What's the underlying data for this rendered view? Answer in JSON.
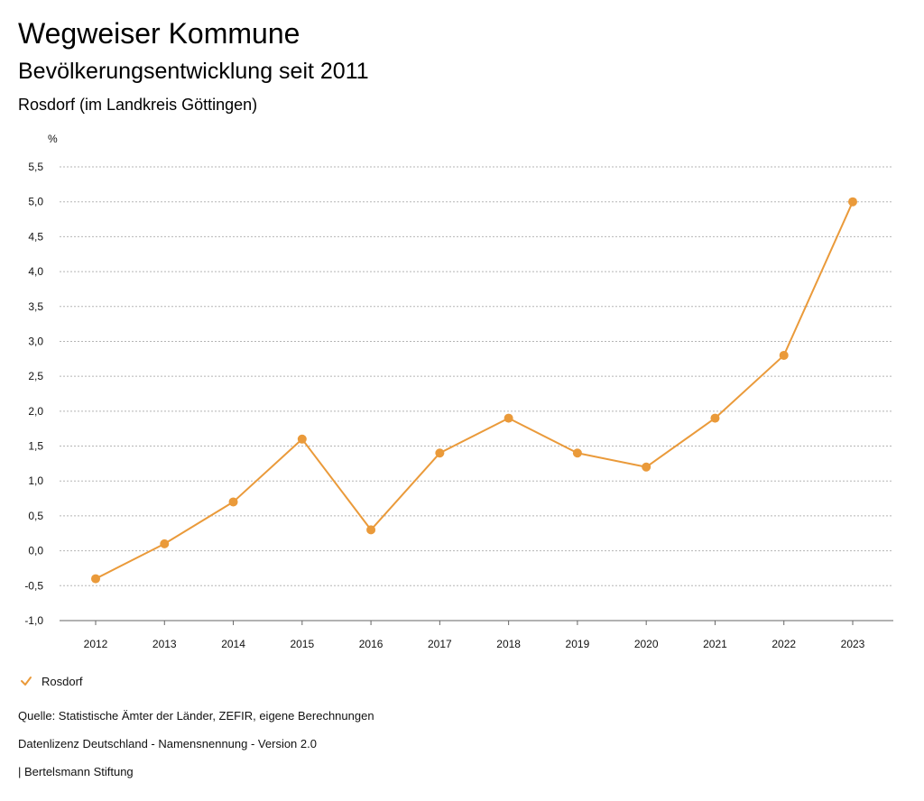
{
  "header": {
    "title": "Wegweiser Kommune",
    "subtitle": "Bevölkerungsentwicklung seit 2011",
    "region": "Rosdorf (im Landkreis Göttingen)"
  },
  "chart_data": {
    "type": "line",
    "unit_label": "%",
    "x": [
      "2012",
      "2013",
      "2014",
      "2015",
      "2016",
      "2017",
      "2018",
      "2019",
      "2020",
      "2021",
      "2022",
      "2023"
    ],
    "series": [
      {
        "name": "Rosdorf",
        "color": "#ea9a3a",
        "values": [
          -0.4,
          0.1,
          0.7,
          1.6,
          0.3,
          1.4,
          1.9,
          1.4,
          1.2,
          1.9,
          2.8,
          5.0
        ]
      }
    ],
    "ylim": [
      -1.0,
      5.5
    ],
    "yticks": [
      "-1,0",
      "-0,5",
      "0,0",
      "0,5",
      "1,0",
      "1,5",
      "2,0",
      "2,5",
      "3,0",
      "3,5",
      "4,0",
      "4,5",
      "5,0",
      "5,5"
    ],
    "grid": true,
    "legend_position": "bottom-left"
  },
  "legend": {
    "label": "Rosdorf",
    "icon": "check-icon"
  },
  "footer": {
    "source": "Quelle: Statistische Ämter der Länder, ZEFIR, eigene Berechnungen",
    "license": "Datenlizenz Deutschland - Namensnennung - Version 2.0",
    "publisher": "| Bertelsmann Stiftung"
  }
}
